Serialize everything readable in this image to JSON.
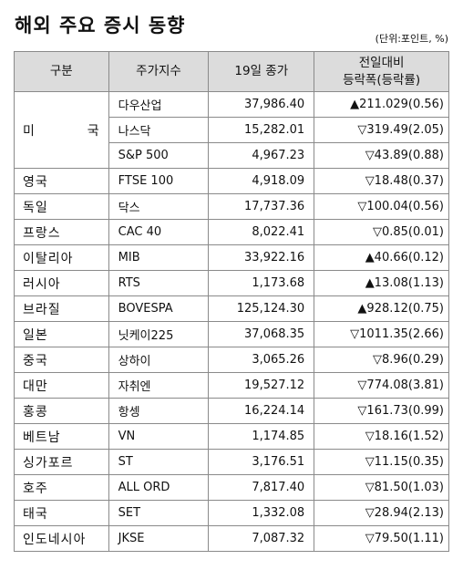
{
  "title": "해외 주요 증시 동향",
  "unit_note": "(단위:포인트, %)",
  "headers": {
    "country": "구분",
    "index": "주가지수",
    "close": "19일 종가",
    "change_line1": "전일대비",
    "change_line2": "등락폭(등락률)"
  },
  "us": {
    "label_a": "미",
    "label_b": "국"
  },
  "rows": [
    {
      "country": "",
      "index": "다우산업",
      "close": "37,986.40",
      "change": "▲211.029(0.56)"
    },
    {
      "country": "",
      "index": "나스닥",
      "close": "15,282.01",
      "change": "▽319.49(2.05)"
    },
    {
      "country": "",
      "index": "S&P 500",
      "close": "4,967.23",
      "change": "▽43.89(0.88)"
    },
    {
      "country": "영국",
      "index": "FTSE 100",
      "close": "4,918.09",
      "change": "▽18.48(0.37)"
    },
    {
      "country": "독일",
      "index": "닥스",
      "close": "17,737.36",
      "change": "▽100.04(0.56)"
    },
    {
      "country": "프랑스",
      "index": "CAC 40",
      "close": "8,022.41",
      "change": "▽0.85(0.01)"
    },
    {
      "country": "이탈리아",
      "index": "MIB",
      "close": "33,922.16",
      "change": "▲40.66(0.12)"
    },
    {
      "country": "러시아",
      "index": "RTS",
      "close": "1,173.68",
      "change": "▲13.08(1.13)"
    },
    {
      "country": "브라질",
      "index": "BOVESPA",
      "close": "125,124.30",
      "change": "▲928.12(0.75)"
    },
    {
      "country": "일본",
      "index": "닛케이225",
      "close": "37,068.35",
      "change": "▽1011.35(2.66)"
    },
    {
      "country": "중국",
      "index": "상하이",
      "close": "3,065.26",
      "change": "▽8.96(0.29)"
    },
    {
      "country": "대만",
      "index": "자취엔",
      "close": "19,527.12",
      "change": "▽774.08(3.81)"
    },
    {
      "country": "홍콩",
      "index": "항셍",
      "close": "16,224.14",
      "change": "▽161.73(0.99)"
    },
    {
      "country": "베트남",
      "index": "VN",
      "close": "1,174.85",
      "change": "▽18.16(1.52)"
    },
    {
      "country": "싱가포르",
      "index": "ST",
      "close": "3,176.51",
      "change": "▽11.15(0.35)"
    },
    {
      "country": "호주",
      "index": "ALL ORD",
      "close": "7,817.40",
      "change": "▽81.50(1.03)"
    },
    {
      "country": "태국",
      "index": "SET",
      "close": "1,332.08",
      "change": "▽28.94(2.13)"
    },
    {
      "country": "인도네시아",
      "index": "JKSE",
      "close": "7,087.32",
      "change": "▽79.50(1.11)"
    }
  ]
}
